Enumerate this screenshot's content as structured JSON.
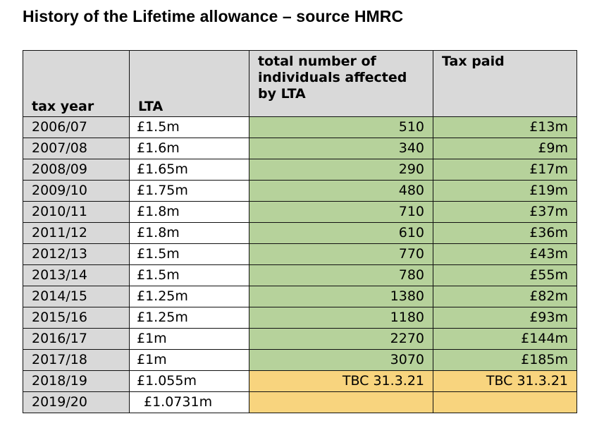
{
  "title": "History of the Lifetime allowance – source HMRC",
  "headers": {
    "tax_year": "tax year",
    "lta": "LTA",
    "individuals": "total number of individuals affected by LTA",
    "tax_paid": "Tax paid"
  },
  "colors": {
    "header_bg": "#d9d9d9",
    "confirmed_bg": "#b6d29b",
    "pending_bg": "#f8d47e"
  },
  "rows": [
    {
      "year": "2006/07",
      "lta": "£1.5m",
      "individuals": "510",
      "tax": "£13m",
      "status": "confirmed"
    },
    {
      "year": "2007/08",
      "lta": "£1.6m",
      "individuals": "340",
      "tax": "£9m",
      "status": "confirmed"
    },
    {
      "year": "2008/09",
      "lta": "£1.65m",
      "individuals": "290",
      "tax": "£17m",
      "status": "confirmed"
    },
    {
      "year": "2009/10",
      "lta": "£1.75m",
      "individuals": "480",
      "tax": "£19m",
      "status": "confirmed"
    },
    {
      "year": "2010/11",
      "lta": "£1.8m",
      "individuals": "710",
      "tax": "£37m",
      "status": "confirmed"
    },
    {
      "year": "2011/12",
      "lta": "£1.8m",
      "individuals": "610",
      "tax": "£36m",
      "status": "confirmed"
    },
    {
      "year": "2012/13",
      "lta": "£1.5m",
      "individuals": "770",
      "tax": "£43m",
      "status": "confirmed"
    },
    {
      "year": "2013/14",
      "lta": "£1.5m",
      "individuals": "780",
      "tax": "£55m",
      "status": "confirmed"
    },
    {
      "year": "2014/15",
      "lta": "£1.25m",
      "individuals": "1380",
      "tax": "£82m",
      "status": "confirmed"
    },
    {
      "year": "2015/16",
      "lta": "£1.25m",
      "individuals": "1180",
      "tax": "£93m",
      "status": "confirmed"
    },
    {
      "year": "2016/17",
      "lta": "£1m",
      "individuals": "2270",
      "tax": "£144m",
      "status": "confirmed"
    },
    {
      "year": "2017/18",
      "lta": "£1m",
      "individuals": "3070",
      "tax": "£185m",
      "status": "confirmed"
    },
    {
      "year": "2018/19",
      "lta": "£1.055m",
      "individuals": "TBC 31.3.21",
      "tax": "TBC 31.3.21",
      "status": "pending"
    },
    {
      "year": "2019/20",
      "lta": "£1.0731m",
      "individuals": "",
      "tax": "",
      "status": "pending"
    }
  ]
}
